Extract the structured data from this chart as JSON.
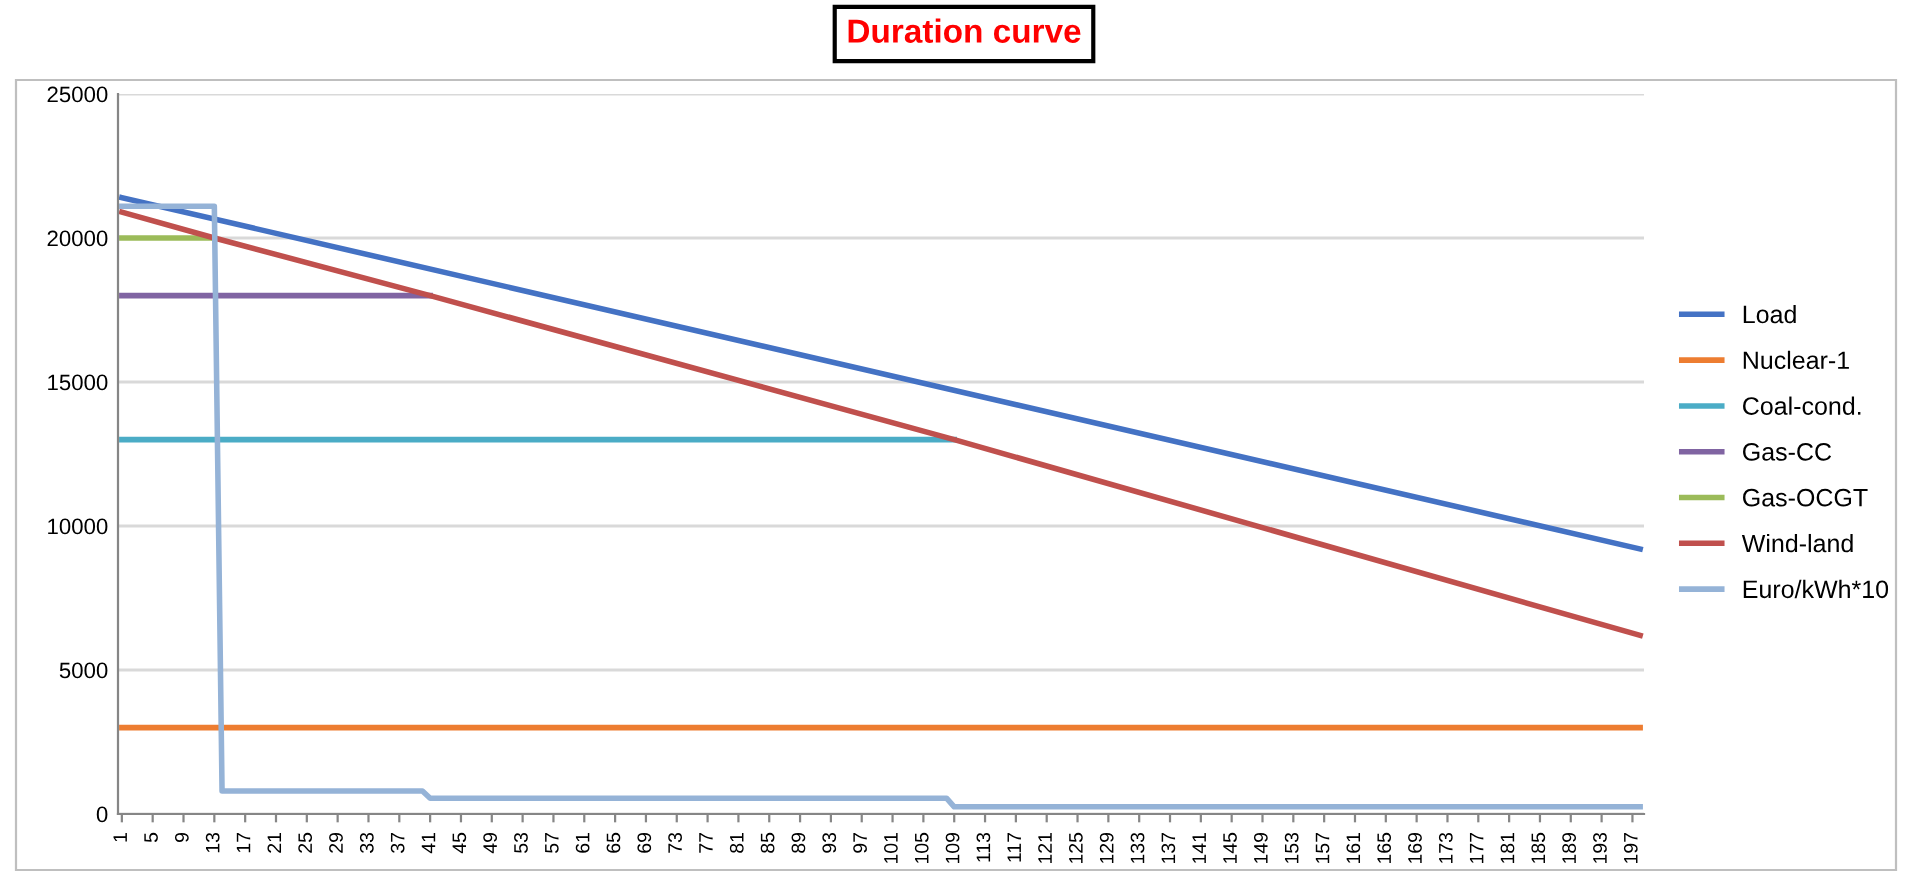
{
  "chart_data": {
    "type": "line",
    "title": "Duration curve",
    "xlim": [
      0.5,
      198.5
    ],
    "xticks": [
      1,
      5,
      9,
      13,
      17,
      21,
      25,
      29,
      33,
      37,
      41,
      45,
      49,
      53,
      57,
      61,
      65,
      69,
      73,
      77,
      81,
      85,
      89,
      93,
      97,
      101,
      105,
      109,
      113,
      117,
      121,
      125,
      129,
      133,
      137,
      141,
      145,
      149,
      153,
      157,
      161,
      165,
      169,
      173,
      177,
      181,
      185,
      189,
      193,
      197
    ],
    "ylim": [
      0,
      25000
    ],
    "yticks": [
      0,
      5000,
      10000,
      15000,
      20000,
      25000
    ],
    "grid": "y",
    "legend": "right",
    "marker": "none",
    "line_style": "solid",
    "series": [
      {
        "name": "Load",
        "color": "#4472c4",
        "x": [
          1,
          198
        ],
        "values": [
          21400,
          9200
        ]
      },
      {
        "name": "Nuclear-1",
        "color": "#ed7d31",
        "x": [
          1,
          198
        ],
        "values": [
          3000,
          3000
        ]
      },
      {
        "name": "Coal-cond.",
        "color": "#4bacc6",
        "x": [
          1,
          109
        ],
        "values": [
          13000,
          13000
        ]
      },
      {
        "name": "Gas-CC",
        "color": "#8064a2",
        "x": [
          1,
          41
        ],
        "values": [
          18000,
          18000
        ]
      },
      {
        "name": "Gas-OCGT",
        "color": "#9bbb59",
        "x": [
          1,
          13
        ],
        "values": [
          20000,
          20000
        ]
      },
      {
        "name": "Wind-land",
        "color": "#c0504d",
        "x": [
          1,
          13,
          41,
          109,
          198
        ],
        "values": [
          20900,
          20000,
          18000,
          13000,
          6200
        ]
      },
      {
        "name": "Euro/kWh*10",
        "color": "#95b3d7",
        "x": [
          1,
          13,
          14,
          40,
          41,
          108,
          109,
          198
        ],
        "values": [
          21100,
          21100,
          800,
          800,
          550,
          550,
          250,
          250
        ]
      }
    ]
  }
}
